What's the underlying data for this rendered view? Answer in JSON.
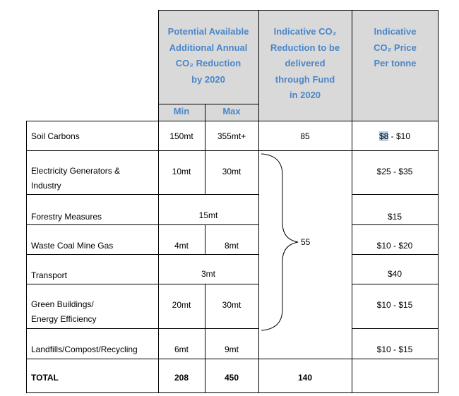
{
  "header": {
    "col_reduction": [
      "Potential Available",
      "Additional Annual",
      "CO₂ Reduction",
      "by 2020"
    ],
    "col_fund": [
      "Indicative CO₂",
      "Reduction to be",
      "delivered",
      "through Fund",
      "in 2020"
    ],
    "col_price": [
      "Indicative",
      "CO₂ Price",
      "Per tonne"
    ],
    "min_label": "Min",
    "max_label": "Max"
  },
  "rows": [
    {
      "label": [
        "Soil Carbons"
      ],
      "min": "150mt",
      "max": "355mt+",
      "fund": "85",
      "price_sel": "$8",
      "price_rest": " - $10"
    },
    {
      "label": [
        "Electricity Generators &",
        "Industry"
      ],
      "min": "10mt",
      "max": "30mt",
      "price": "$25 - $35"
    },
    {
      "label": [
        "Forestry Measures"
      ],
      "span": "15mt",
      "price": "$15"
    },
    {
      "label": [
        "Waste Coal Mine Gas"
      ],
      "min": "4mt",
      "max": "8mt",
      "price": "$10 - $20"
    },
    {
      "label": [
        "Transport"
      ],
      "span": "3mt",
      "price": "$40"
    },
    {
      "label": [
        "Green Buildings/",
        "Energy Efficiency"
      ],
      "min": "20mt",
      "max": "30mt",
      "price": "$10 - $15"
    },
    {
      "label": [
        "Landfills/Compost/Recycling"
      ],
      "min": "6mt",
      "max": "9mt",
      "price": "$10 - $15"
    }
  ],
  "fund_group": "55",
  "total": {
    "label": "TOTAL",
    "min": "208",
    "max": "450",
    "fund": "140"
  }
}
